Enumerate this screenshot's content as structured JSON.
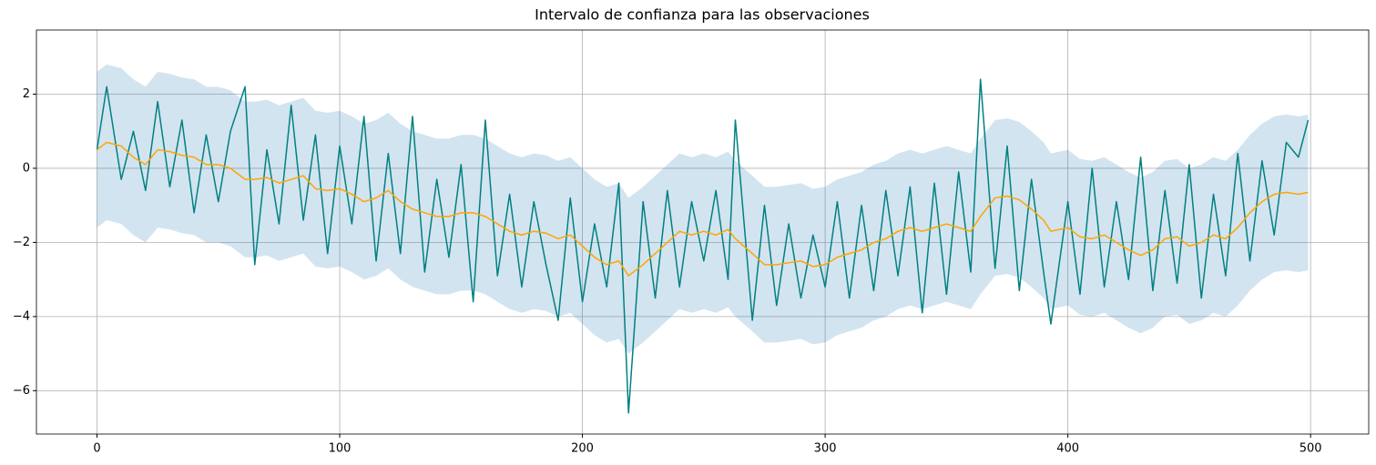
{
  "chart_data": {
    "type": "line",
    "title": "Intervalo de confianza para las observaciones",
    "x": [
      0,
      4,
      10,
      15,
      20,
      25,
      30,
      35,
      40,
      45,
      50,
      55,
      61,
      65,
      70,
      75,
      80,
      85,
      90,
      95,
      100,
      105,
      110,
      115,
      120,
      125,
      130,
      135,
      140,
      145,
      150,
      155,
      160,
      165,
      170,
      175,
      180,
      185,
      190,
      195,
      200,
      205,
      210,
      215,
      219,
      225,
      230,
      235,
      240,
      245,
      250,
      255,
      260,
      263,
      270,
      275,
      280,
      285,
      290,
      295,
      300,
      305,
      310,
      315,
      320,
      325,
      330,
      335,
      340,
      345,
      350,
      355,
      360,
      364,
      370,
      375,
      380,
      385,
      390,
      393,
      400,
      405,
      410,
      415,
      420,
      425,
      430,
      435,
      440,
      445,
      450,
      455,
      460,
      465,
      470,
      475,
      480,
      485,
      490,
      495,
      499
    ],
    "band": {
      "color": "#1f77b4",
      "opacity": 0.2,
      "upper": [
        2.6,
        2.8,
        2.7,
        2.4,
        2.2,
        2.6,
        2.55,
        2.45,
        2.4,
        2.2,
        2.2,
        2.1,
        1.8,
        1.8,
        1.85,
        1.7,
        1.8,
        1.9,
        1.55,
        1.5,
        1.55,
        1.4,
        1.2,
        1.3,
        1.5,
        1.2,
        1.0,
        0.9,
        0.8,
        0.8,
        0.9,
        0.9,
        0.8,
        0.6,
        0.4,
        0.3,
        0.4,
        0.35,
        0.2,
        0.3,
        0.0,
        -0.3,
        -0.5,
        -0.4,
        -0.8,
        -0.5,
        -0.2,
        0.1,
        0.4,
        0.3,
        0.4,
        0.3,
        0.45,
        0.2,
        -0.2,
        -0.5,
        -0.5,
        -0.45,
        -0.4,
        -0.55,
        -0.5,
        -0.3,
        -0.2,
        -0.1,
        0.1,
        0.2,
        0.4,
        0.5,
        0.4,
        0.5,
        0.6,
        0.5,
        0.4,
        0.8,
        1.3,
        1.35,
        1.25,
        1.0,
        0.7,
        0.4,
        0.5,
        0.25,
        0.2,
        0.3,
        0.1,
        -0.1,
        -0.25,
        -0.1,
        0.2,
        0.25,
        0.0,
        0.1,
        0.3,
        0.2,
        0.5,
        0.9,
        1.2,
        1.4,
        1.45,
        1.4,
        1.45
      ],
      "lower": [
        -1.6,
        -1.4,
        -1.5,
        -1.8,
        -2.0,
        -1.6,
        -1.65,
        -1.75,
        -1.8,
        -2.0,
        -2.0,
        -2.1,
        -2.4,
        -2.4,
        -2.35,
        -2.5,
        -2.4,
        -2.3,
        -2.65,
        -2.7,
        -2.65,
        -2.8,
        -3.0,
        -2.9,
        -2.7,
        -3.0,
        -3.2,
        -3.3,
        -3.4,
        -3.4,
        -3.3,
        -3.3,
        -3.4,
        -3.6,
        -3.8,
        -3.9,
        -3.8,
        -3.85,
        -4.0,
        -3.9,
        -4.2,
        -4.5,
        -4.7,
        -4.6,
        -5.0,
        -4.7,
        -4.4,
        -4.1,
        -3.8,
        -3.9,
        -3.8,
        -3.9,
        -3.75,
        -4.0,
        -4.4,
        -4.7,
        -4.7,
        -4.65,
        -4.6,
        -4.75,
        -4.7,
        -4.5,
        -4.4,
        -4.3,
        -4.1,
        -4.0,
        -3.8,
        -3.7,
        -3.8,
        -3.7,
        -3.6,
        -3.7,
        -3.8,
        -3.4,
        -2.9,
        -2.85,
        -2.95,
        -3.2,
        -3.5,
        -3.8,
        -3.7,
        -3.95,
        -4.0,
        -3.9,
        -4.1,
        -4.3,
        -4.45,
        -4.3,
        -4.0,
        -3.95,
        -4.2,
        -4.1,
        -3.9,
        -4.0,
        -3.7,
        -3.3,
        -3.0,
        -2.8,
        -2.75,
        -2.8,
        -2.75
      ]
    },
    "series": [
      {
        "color": "#008080",
        "values": [
          0.5,
          2.2,
          -0.3,
          1.0,
          -0.6,
          1.8,
          -0.5,
          1.3,
          -1.2,
          0.9,
          -0.9,
          1.0,
          2.2,
          -2.6,
          0.5,
          -1.5,
          1.7,
          -1.4,
          0.9,
          -2.3,
          0.6,
          -1.5,
          1.4,
          -2.5,
          0.4,
          -2.3,
          1.4,
          -2.8,
          -0.3,
          -2.4,
          0.1,
          -3.6,
          1.3,
          -2.9,
          -0.7,
          -3.2,
          -0.9,
          -2.6,
          -4.1,
          -0.8,
          -3.6,
          -1.5,
          -3.2,
          -0.4,
          -6.6,
          -0.9,
          -3.5,
          -0.6,
          -3.2,
          -0.9,
          -2.5,
          -0.6,
          -3.0,
          1.3,
          -4.1,
          -1.0,
          -3.7,
          -1.5,
          -3.5,
          -1.8,
          -3.2,
          -0.9,
          -3.5,
          -1.0,
          -3.3,
          -0.6,
          -2.9,
          -0.5,
          -3.9,
          -0.4,
          -3.4,
          -0.1,
          -2.8,
          2.4,
          -2.7,
          0.6,
          -3.3,
          -0.3,
          -2.8,
          -4.2,
          -0.9,
          -3.4,
          0.0,
          -3.2,
          -0.9,
          -3.0,
          0.3,
          -3.3,
          -0.6,
          -3.1,
          0.1,
          -3.5,
          -0.7,
          -2.9,
          0.4,
          -2.5,
          0.2,
          -1.8,
          0.7,
          0.3,
          1.3
        ]
      },
      {
        "color": "#ffa500",
        "values": [
          0.5,
          0.7,
          0.6,
          0.3,
          0.1,
          0.5,
          0.45,
          0.35,
          0.3,
          0.1,
          0.1,
          0.0,
          -0.3,
          -0.3,
          -0.25,
          -0.4,
          -0.3,
          -0.2,
          -0.55,
          -0.6,
          -0.55,
          -0.7,
          -0.9,
          -0.8,
          -0.6,
          -0.9,
          -1.1,
          -1.2,
          -1.3,
          -1.3,
          -1.2,
          -1.2,
          -1.3,
          -1.5,
          -1.7,
          -1.8,
          -1.7,
          -1.75,
          -1.9,
          -1.8,
          -2.1,
          -2.4,
          -2.6,
          -2.5,
          -2.9,
          -2.6,
          -2.3,
          -2.0,
          -1.7,
          -1.8,
          -1.7,
          -1.8,
          -1.65,
          -1.9,
          -2.3,
          -2.6,
          -2.6,
          -2.55,
          -2.5,
          -2.65,
          -2.6,
          -2.4,
          -2.3,
          -2.2,
          -2.0,
          -1.9,
          -1.7,
          -1.6,
          -1.7,
          -1.6,
          -1.5,
          -1.6,
          -1.7,
          -1.3,
          -0.8,
          -0.75,
          -0.85,
          -1.1,
          -1.4,
          -1.7,
          -1.6,
          -1.85,
          -1.9,
          -1.8,
          -2.0,
          -2.2,
          -2.35,
          -2.2,
          -1.9,
          -1.85,
          -2.1,
          -2.0,
          -1.8,
          -1.9,
          -1.6,
          -1.2,
          -0.9,
          -0.7,
          -0.65,
          -0.7,
          -0.65
        ]
      }
    ],
    "xlim": [
      -24.95,
      523.95
    ],
    "xticks": [
      0,
      100,
      200,
      300,
      400,
      500
    ],
    "ylim": [
      -7.17,
      3.73
    ],
    "yticks": [
      {
        "value": -6,
        "label": "−6"
      },
      {
        "value": -4,
        "label": "−4"
      },
      {
        "value": -2,
        "label": "−2"
      },
      0,
      2
    ],
    "grid": true
  }
}
